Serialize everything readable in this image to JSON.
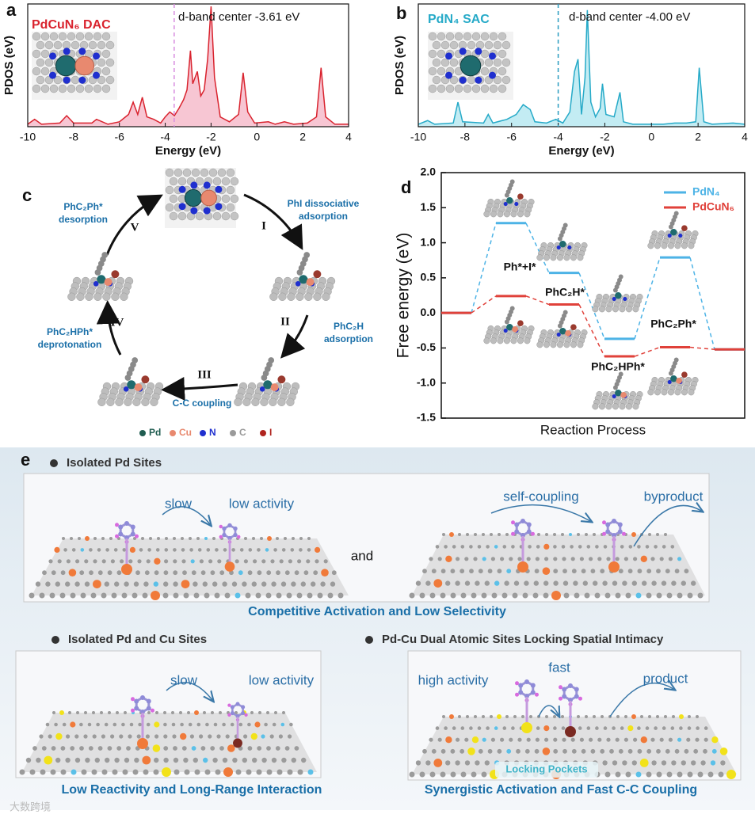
{
  "chart_data": [
    {
      "type": "line",
      "panel_label": "a",
      "title": "PdCuN₆ DAC",
      "annotation": "d-band center  -3.61 eV",
      "d_band_center": -3.61,
      "xlabel": "Energy (eV)",
      "ylabel": "PDOS (eV)",
      "color": "#d9232e",
      "fill": "#f7c6d3",
      "marker_color": "#d98ee0",
      "xlim": [
        -10,
        4
      ],
      "xticks": [
        -10,
        -8,
        -6,
        -4,
        -2,
        0,
        2,
        4
      ],
      "ylim": [
        0,
        100
      ],
      "x": [
        -10,
        -9.7,
        -9.4,
        -8.6,
        -8.3,
        -8,
        -7.2,
        -7,
        -6.5,
        -6,
        -5.6,
        -5.4,
        -5.2,
        -5,
        -4.8,
        -4.5,
        -4.2,
        -4,
        -3.8,
        -3.6,
        -3.4,
        -3.2,
        -3.05,
        -2.9,
        -2.8,
        -2.6,
        -2.45,
        -2.3,
        -2.15,
        -2,
        -1.85,
        -1.6,
        -1.2,
        -0.8,
        -0.6,
        -0.4,
        -0.1,
        0.5,
        0.8,
        1.2,
        1.6,
        2.2,
        2.6,
        2.8,
        3,
        3.4,
        4
      ],
      "values": [
        2,
        6,
        2,
        3,
        9,
        3,
        3,
        6,
        2,
        4,
        10,
        20,
        10,
        24,
        8,
        6,
        3,
        8,
        12,
        9,
        15,
        22,
        30,
        62,
        35,
        45,
        25,
        30,
        55,
        98,
        40,
        8,
        4,
        10,
        44,
        12,
        3,
        4,
        2,
        4,
        2,
        3,
        8,
        48,
        8,
        2,
        2
      ]
    },
    {
      "type": "line",
      "panel_label": "b",
      "title": "PdN₄ SAC",
      "annotation": "d-band center -4.00 eV",
      "d_band_center": -4.0,
      "xlabel": "Energy (eV)",
      "ylabel": "PDOS (eV)",
      "color": "#26aac8",
      "fill": "#c3ecf3",
      "marker_color": "#2a9cc0",
      "xlim": [
        -10,
        4
      ],
      "xticks": [
        -10,
        -8,
        -6,
        -4,
        -2,
        0,
        2,
        4
      ],
      "ylim": [
        0,
        100
      ],
      "x": [
        -10,
        -9.6,
        -9.3,
        -8.5,
        -8.3,
        -8.1,
        -7.2,
        -7,
        -6.8,
        -6.2,
        -5.8,
        -5.5,
        -5.2,
        -5,
        -4.5,
        -4.1,
        -3.8,
        -3.5,
        -3.3,
        -3.15,
        -3,
        -2.85,
        -2.75,
        -2.6,
        -2.4,
        -2.2,
        -2.1,
        -1.95,
        -1.6,
        -1.35,
        -1.2,
        -0.8,
        0.5,
        1,
        1.5,
        1.9,
        2.05,
        2.25,
        2.6,
        3.5,
        4
      ],
      "values": [
        2,
        5,
        2,
        3,
        20,
        4,
        3,
        10,
        3,
        6,
        10,
        18,
        14,
        4,
        3,
        6,
        3,
        12,
        45,
        55,
        10,
        40,
        95,
        20,
        8,
        15,
        35,
        10,
        8,
        28,
        4,
        2,
        2,
        3,
        3,
        4,
        48,
        4,
        2,
        3,
        2
      ]
    },
    {
      "type": "energy_levels",
      "panel_label": "d",
      "ylabel": "Free energy (eV)",
      "xlabel": "Reaction Process",
      "categories": [
        null,
        "Ph*+I*",
        "PhC₂H*",
        "PhC₂HPh*",
        "PhC₂Ph*",
        null
      ],
      "series": [
        {
          "name": "PdN₄",
          "color": "#4db3e6",
          "values": [
            0.0,
            1.28,
            0.57,
            -0.37,
            0.79,
            -0.52
          ]
        },
        {
          "name": "PdCuN₆",
          "color": "#e0413a",
          "values": [
            0.0,
            0.24,
            0.12,
            -0.62,
            -0.49,
            -0.52
          ]
        }
      ],
      "ylim": [
        -1.5,
        2.0
      ],
      "yticks": [
        -1.5,
        {
          "value": -1.0,
          "label": "-1.0"
        },
        -0.5,
        {
          "value": 0.0,
          "label": "0.0"
        },
        0.5,
        {
          "value": 1.0,
          "label": "1.0"
        },
        1.5,
        {
          "value": 2.0,
          "label": "2.0"
        }
      ],
      "legend": "upper right"
    }
  ],
  "panel_c": {
    "panel_label": "c",
    "steps": [
      {
        "numeral": "I",
        "label": [
          "PhI dissociative",
          "adsorption"
        ]
      },
      {
        "numeral": "II",
        "label": [
          "PhC₂H",
          "adsorption"
        ]
      },
      {
        "numeral": "III",
        "label": [
          "C-C coupling"
        ]
      },
      {
        "numeral": "IV",
        "label": [
          "PhC₂HPh*",
          "deprotonation"
        ]
      },
      {
        "numeral": "V",
        "label": [
          "PhC₂Ph*",
          "desorption"
        ]
      }
    ],
    "legend": [
      {
        "name": "Pd",
        "color": "#1f5c50"
      },
      {
        "name": "Cu",
        "color": "#e8896f"
      },
      {
        "name": "N",
        "color": "#1f2fcf"
      },
      {
        "name": "C",
        "color": "#9a9a9a"
      },
      {
        "name": "I",
        "color": "#b0241f"
      }
    ]
  },
  "panel_e": {
    "panel_label": "e",
    "row1": {
      "heading": "Isolated Pd Sites",
      "left_notes": [
        "slow",
        "low activity"
      ],
      "joiner": "and",
      "right_notes": [
        "self-coupling",
        "byproduct"
      ],
      "caption": "Competitive Activation and Low Selectivity"
    },
    "row2_left": {
      "heading": "Isolated Pd  and Cu Sites",
      "notes": [
        "slow",
        "low activity"
      ],
      "caption": "Low Reactivity and Long-Range Interaction"
    },
    "row2_right": {
      "heading": "Pd-Cu Dual Atomic Sites Locking Spatial Intimacy",
      "notes": [
        "high activity",
        "fast",
        "product"
      ],
      "pocket_label": "Locking Pockets",
      "caption": "Synergistic Activation and Fast C-C Coupling"
    }
  },
  "watermark": "大数跨境"
}
